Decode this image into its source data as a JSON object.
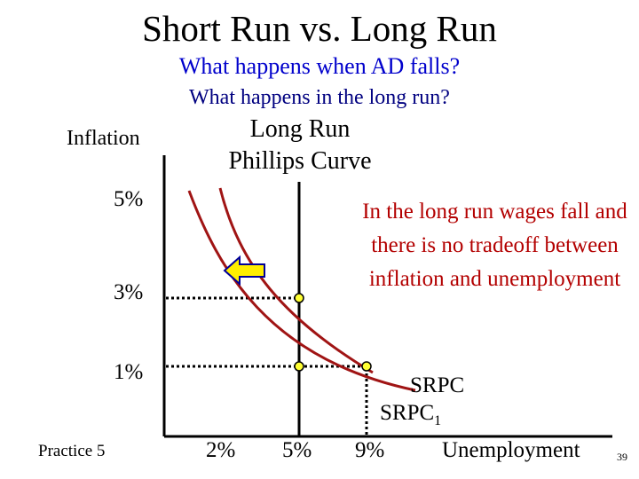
{
  "title": "Short Run vs. Long Run",
  "question1": "What happens when AD falls?",
  "question2": "What happens in the long run?",
  "y_axis_label": "Inflation",
  "lrpc_label": "Long Run Phillips Curve",
  "x_axis_label": "Unemployment",
  "y_ticks": [
    "5%",
    "3%",
    "1%"
  ],
  "x_ticks": [
    "2%",
    "5%",
    "9%"
  ],
  "explanation": "In the long run wages fall and there is no tradeoff between inflation and unemployment",
  "curve_labels": {
    "srpc": "SRPC",
    "srpc1_base": "SRPC",
    "srpc1_sub": "1"
  },
  "footer": {
    "practice": "Practice 5",
    "page": "39"
  },
  "colors": {
    "curve": "#a01414",
    "arrow_fill": "#ffee00",
    "arrow_stroke": "#000099",
    "point_fill": "#ffff33",
    "note_text": "#b30000"
  },
  "icons": {
    "shift_arrow": "left-arrow-icon"
  }
}
